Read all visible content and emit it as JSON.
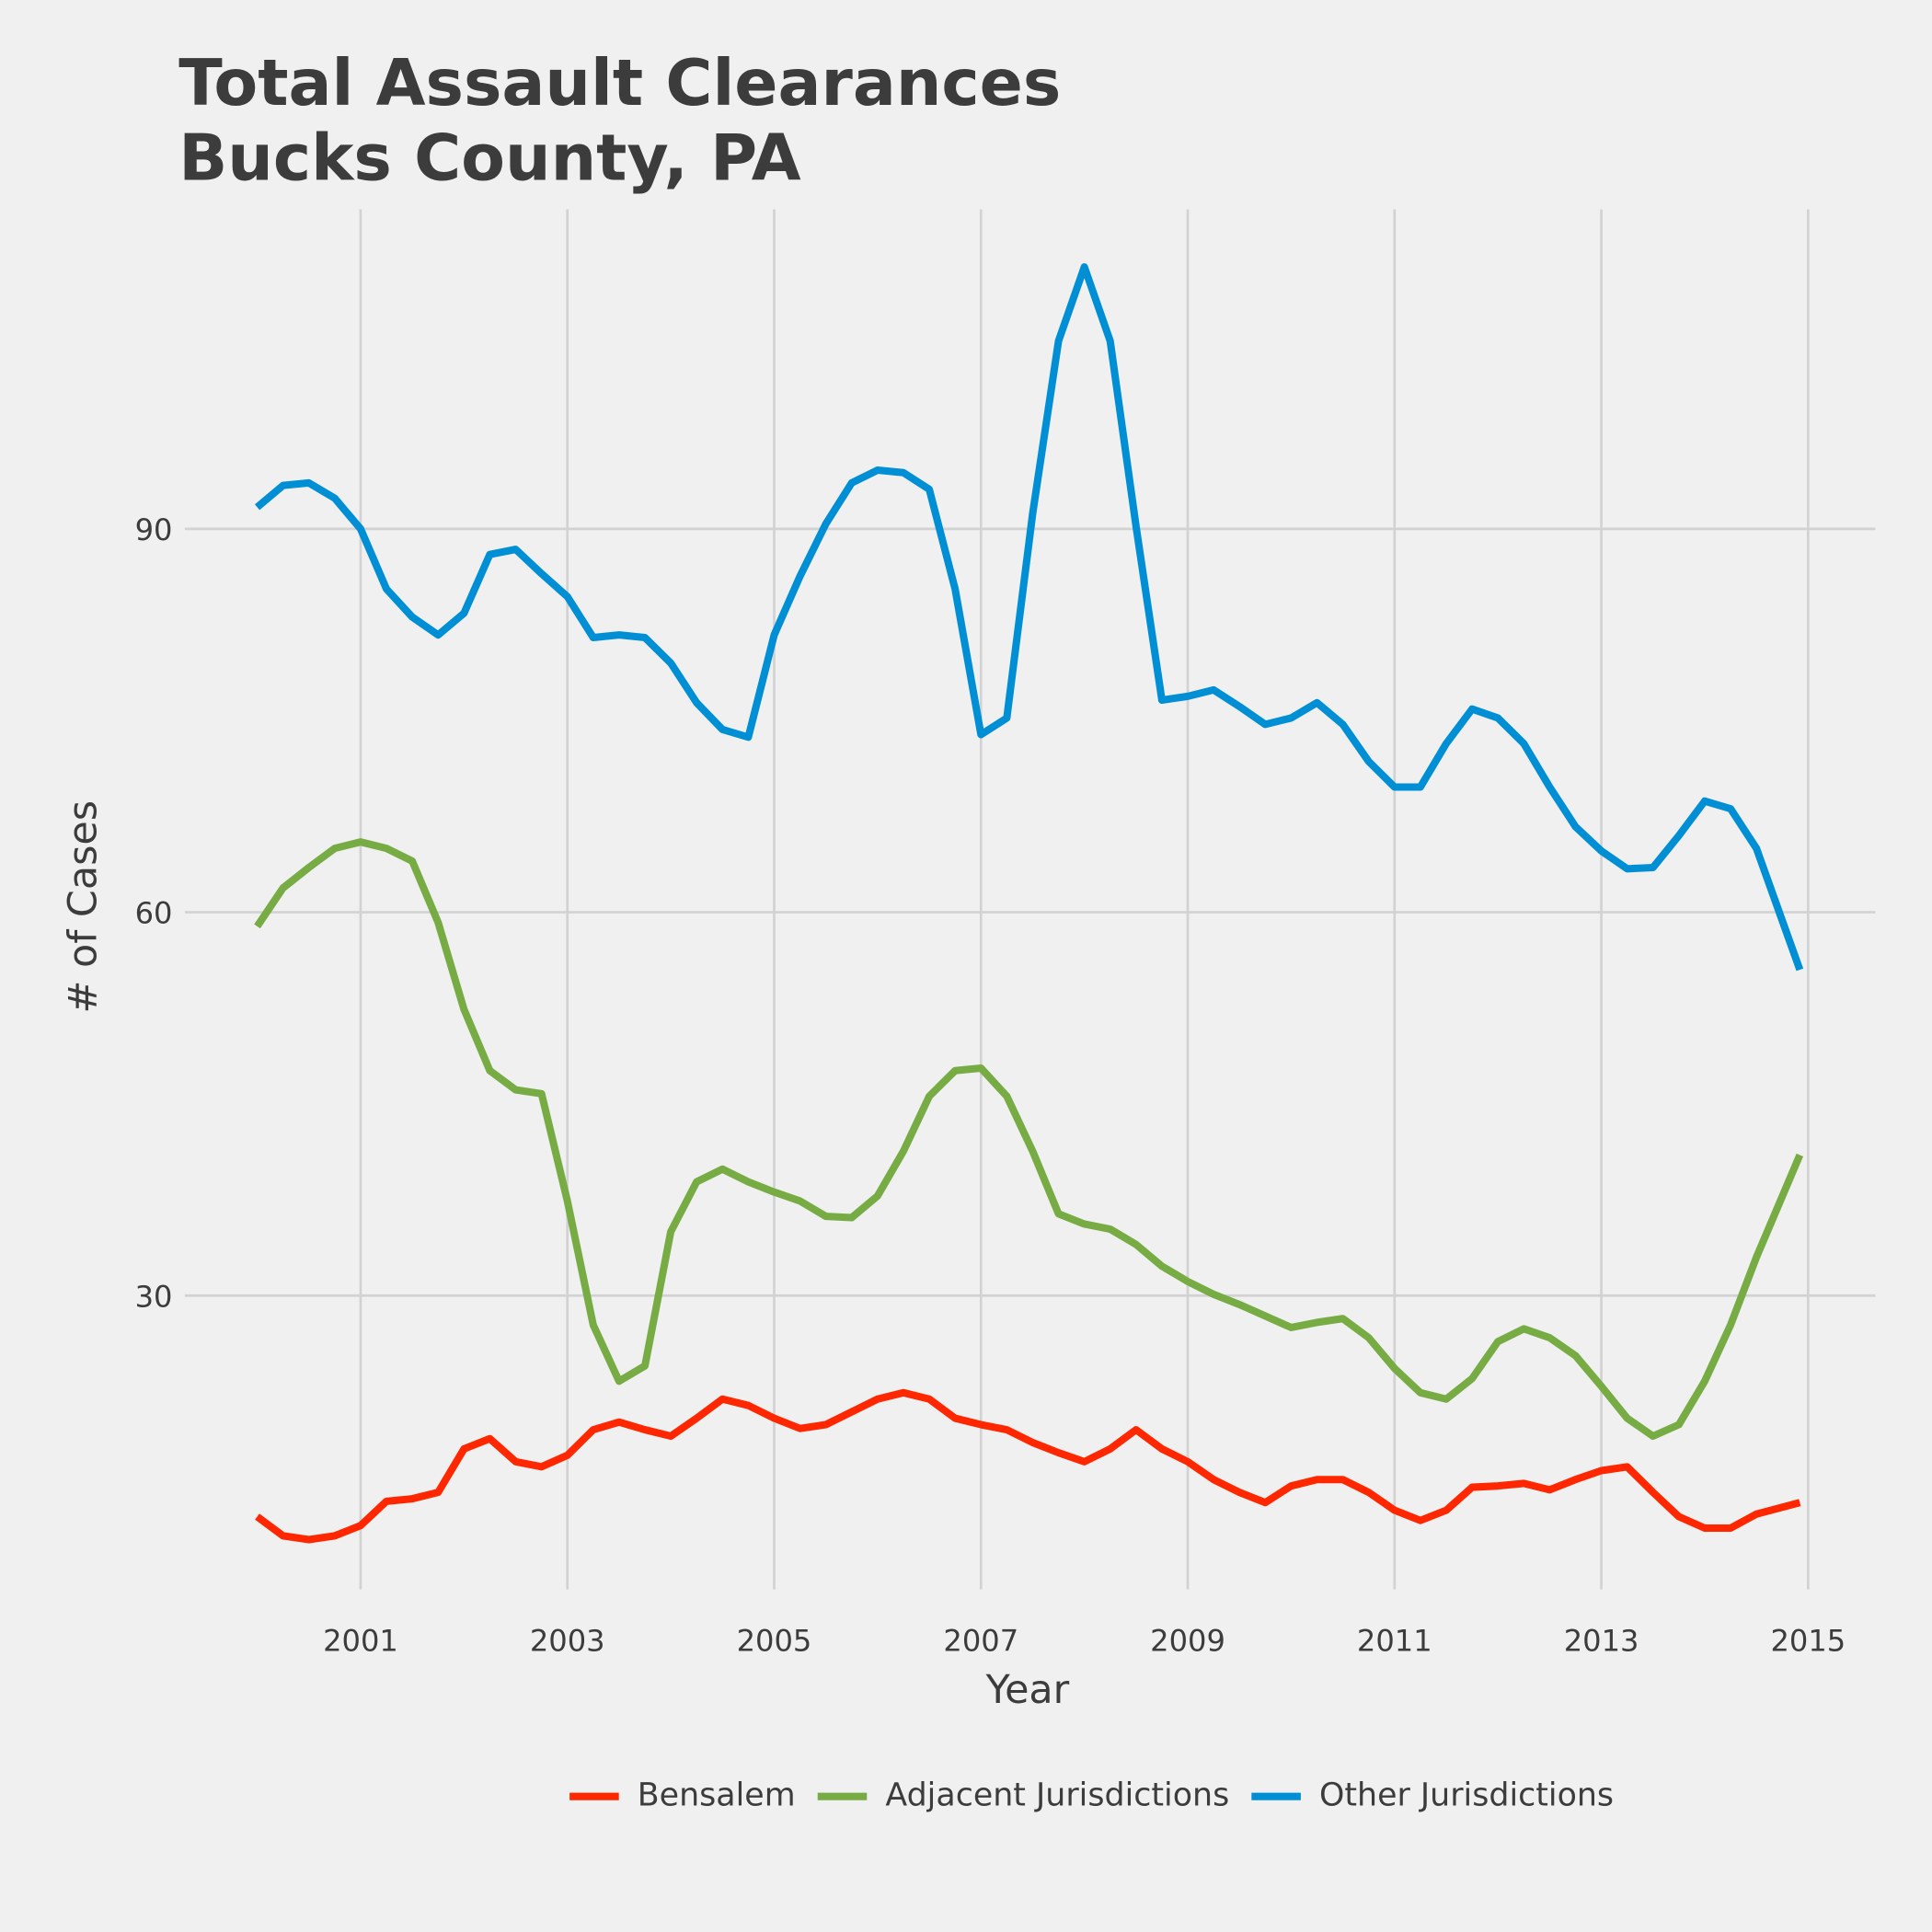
{
  "chart_data": {
    "type": "line",
    "title": [
      "Total Assault Clearances",
      "Bucks County, PA"
    ],
    "xlabel": "Year",
    "ylabel": "# of Cases",
    "xlim": [
      1999.3,
      2015.65
    ],
    "ylim": [
      7,
      115
    ],
    "xticks": [
      2001,
      2003,
      2005,
      2007,
      2009,
      2011,
      2013,
      2015
    ],
    "yticks": [
      30,
      60,
      90
    ],
    "grid": true,
    "legend": "bottom",
    "x": [
      2000,
      2000.25,
      2000.5,
      2000.75,
      2001,
      2001.25,
      2001.5,
      2001.75,
      2002,
      2002.25,
      2002.5,
      2002.75,
      2003,
      2003.25,
      2003.5,
      2003.75,
      2004,
      2004.25,
      2004.5,
      2004.75,
      2005,
      2005.25,
      2005.5,
      2005.75,
      2006,
      2006.25,
      2006.5,
      2006.75,
      2007,
      2007.25,
      2007.5,
      2007.75,
      2008,
      2008.25,
      2008.5,
      2008.75,
      2009,
      2009.25,
      2009.5,
      2009.75,
      2010,
      2010.25,
      2010.5,
      2010.75,
      2011,
      2011.25,
      2011.5,
      2011.75,
      2012,
      2012.25,
      2012.5,
      2012.75,
      2013,
      2013.25,
      2013.5,
      2013.75,
      2014,
      2014.25,
      2014.5,
      2014.92
    ],
    "series": [
      {
        "name": "Bensalem",
        "color": "#ff2700",
        "values": [
          12.7,
          11.2,
          10.9,
          11.2,
          12,
          13.9,
          14.1,
          14.6,
          18,
          18.8,
          17,
          16.6,
          17.5,
          19.5,
          20.1,
          19.5,
          19,
          20.4,
          21.9,
          21.4,
          20.4,
          19.6,
          19.9,
          20.9,
          21.9,
          22.4,
          21.9,
          20.4,
          19.9,
          19.5,
          18.5,
          17.7,
          17,
          18,
          19.5,
          18,
          17,
          15.6,
          14.6,
          13.8,
          15.1,
          15.6,
          15.6,
          14.6,
          13.2,
          12.4,
          13.2,
          15,
          15.1,
          15.3,
          14.8,
          15.6,
          16.3,
          16.6,
          14.6,
          12.7,
          11.8,
          11.8,
          12.9,
          13.8
        ]
      },
      {
        "name": "Adjacent Jurisdictions",
        "color": "#77ab43",
        "values": [
          58.9,
          61.9,
          63.5,
          65,
          65.5,
          65,
          64,
          59.2,
          52.4,
          47.6,
          46.1,
          45.8,
          37.4,
          27.7,
          23.3,
          24.5,
          35,
          38.9,
          39.9,
          38.9,
          38.1,
          37.4,
          36.2,
          36.1,
          37.8,
          41.3,
          45.6,
          47.6,
          47.8,
          45.6,
          41.3,
          36.4,
          35.6,
          35.2,
          34,
          32.3,
          31.1,
          30.1,
          29.3,
          28.4,
          27.5,
          27.9,
          28.2,
          26.7,
          24.3,
          22.4,
          21.9,
          23.5,
          26.4,
          27.4,
          26.7,
          25.3,
          22.9,
          20.4,
          19,
          19.9,
          23.3,
          27.7,
          33,
          41
        ]
      },
      {
        "name": "Other Jurisdictions",
        "color": "#008fd5",
        "values": [
          91.7,
          93.4,
          93.6,
          92.4,
          90,
          85.3,
          83.1,
          81.7,
          83.4,
          88,
          88.4,
          86.5,
          84.7,
          81.5,
          81.7,
          81.5,
          79.5,
          76.4,
          74.3,
          73.7,
          81.7,
          86.3,
          90.4,
          93.6,
          94.6,
          94.4,
          93.1,
          85.3,
          73.9,
          75.2,
          91.2,
          104.7,
          110.5,
          104.7,
          90.2,
          76.6,
          76.9,
          77.4,
          76.1,
          74.7,
          75.2,
          76.4,
          74.7,
          71.8,
          69.8,
          69.8,
          73.2,
          75.9,
          75.2,
          73.2,
          69.8,
          66.7,
          64.8,
          63.4,
          63.5,
          66,
          68.7,
          68.1,
          65,
          55.5
        ]
      }
    ]
  }
}
